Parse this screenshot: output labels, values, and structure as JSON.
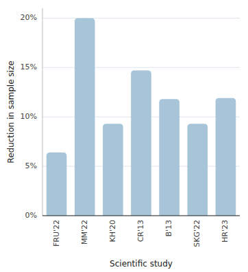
{
  "chart_data": {
    "type": "bar",
    "xlabel": "Scientific study",
    "ylabel": "Reduction in sample size",
    "categories": [
      "FRU'22",
      "MM'22",
      "KH'20",
      "CR'13",
      "B'13",
      "SKG'22",
      "HR'23"
    ],
    "values": [
      6.4,
      20.0,
      9.3,
      14.7,
      11.8,
      9.3,
      11.9
    ],
    "color": "#a8c4d8",
    "ylim": [
      0,
      21
    ],
    "yticks": [
      {
        "value": 0,
        "label": "0%"
      },
      {
        "value": 5,
        "label": "5%"
      },
      {
        "value": 10,
        "label": "10%"
      },
      {
        "value": 15,
        "label": "15%"
      },
      {
        "value": 20,
        "label": "20%"
      }
    ],
    "grid": true
  }
}
